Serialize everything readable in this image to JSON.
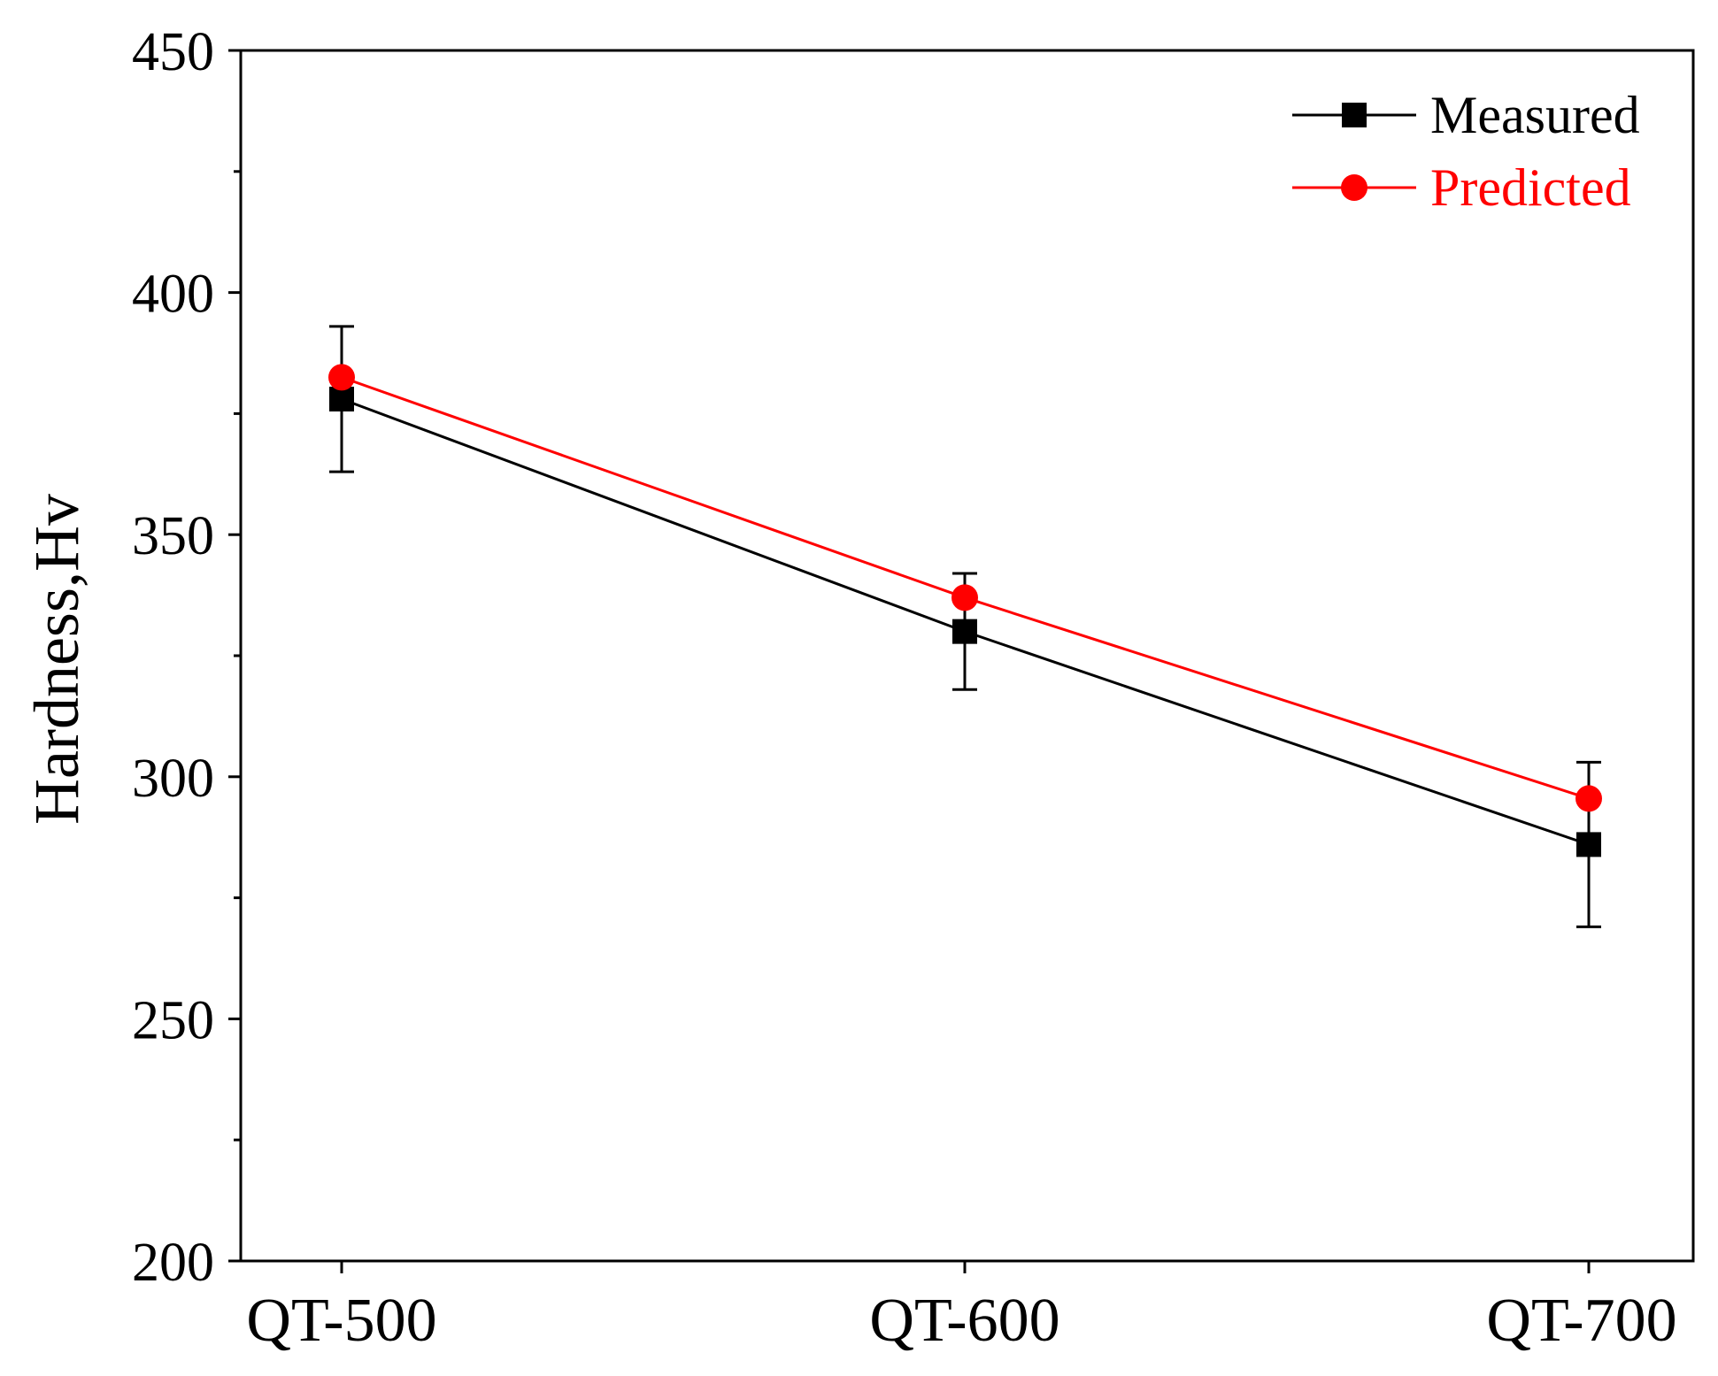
{
  "chart_data": {
    "type": "line",
    "title": "",
    "xlabel": "",
    "ylabel": "Hardness,Hv",
    "categories": [
      "QT-500",
      "QT-600",
      "QT-700"
    ],
    "ylim": [
      200,
      450
    ],
    "yticks": [
      200,
      250,
      300,
      350,
      400,
      450
    ],
    "grid": false,
    "legend_position": "top-right",
    "series": [
      {
        "name": "Measured",
        "color": "#000000",
        "marker": "square",
        "values": [
          378,
          330,
          286
        ],
        "error": [
          [
            363,
            393
          ],
          [
            318,
            342
          ],
          [
            269,
            303
          ]
        ]
      },
      {
        "name": "Predicted",
        "color": "#ff0000",
        "marker": "circle",
        "values": [
          382.5,
          337,
          295.5
        ]
      }
    ]
  }
}
